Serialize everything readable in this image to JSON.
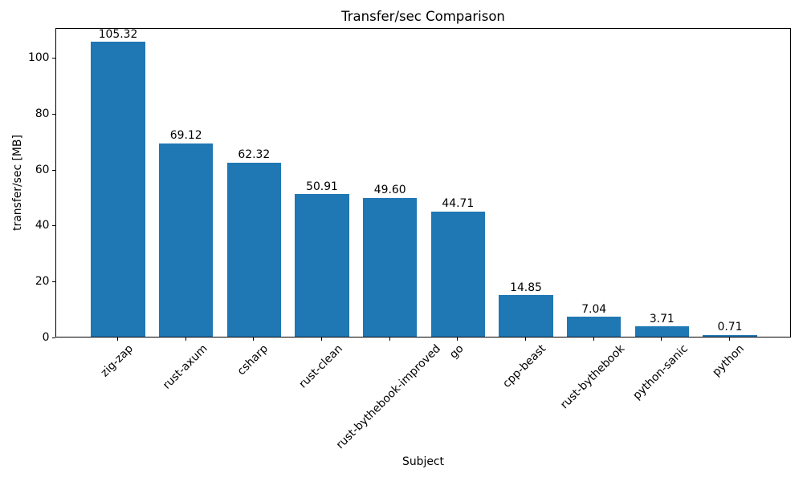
{
  "chart_data": {
    "type": "bar",
    "title": "Transfer/sec Comparison",
    "xlabel": "Subject",
    "ylabel": "transfer/sec [MB]",
    "categories": [
      "zig-zap",
      "rust-axum",
      "csharp",
      "rust-clean",
      "rust-bythebook-improved",
      "go",
      "cpp-beast",
      "rust-bythebook",
      "python-sanic",
      "python"
    ],
    "values": [
      105.32,
      69.12,
      62.32,
      50.91,
      49.6,
      44.71,
      14.85,
      7.04,
      3.71,
      0.71
    ],
    "value_labels": [
      "105.32",
      "69.12",
      "62.32",
      "50.91",
      "49.60",
      "44.71",
      "14.85",
      "7.04",
      "3.71",
      "0.71"
    ],
    "yticks": [
      0,
      20,
      40,
      60,
      80,
      100
    ],
    "ylim": [
      0,
      110.59
    ],
    "grid": false,
    "legend": false,
    "xtick_rotation": 45,
    "bar_color": "#1f77b4",
    "axis_color": "#000000",
    "text_color": "#000000",
    "background_color": "#ffffff"
  }
}
